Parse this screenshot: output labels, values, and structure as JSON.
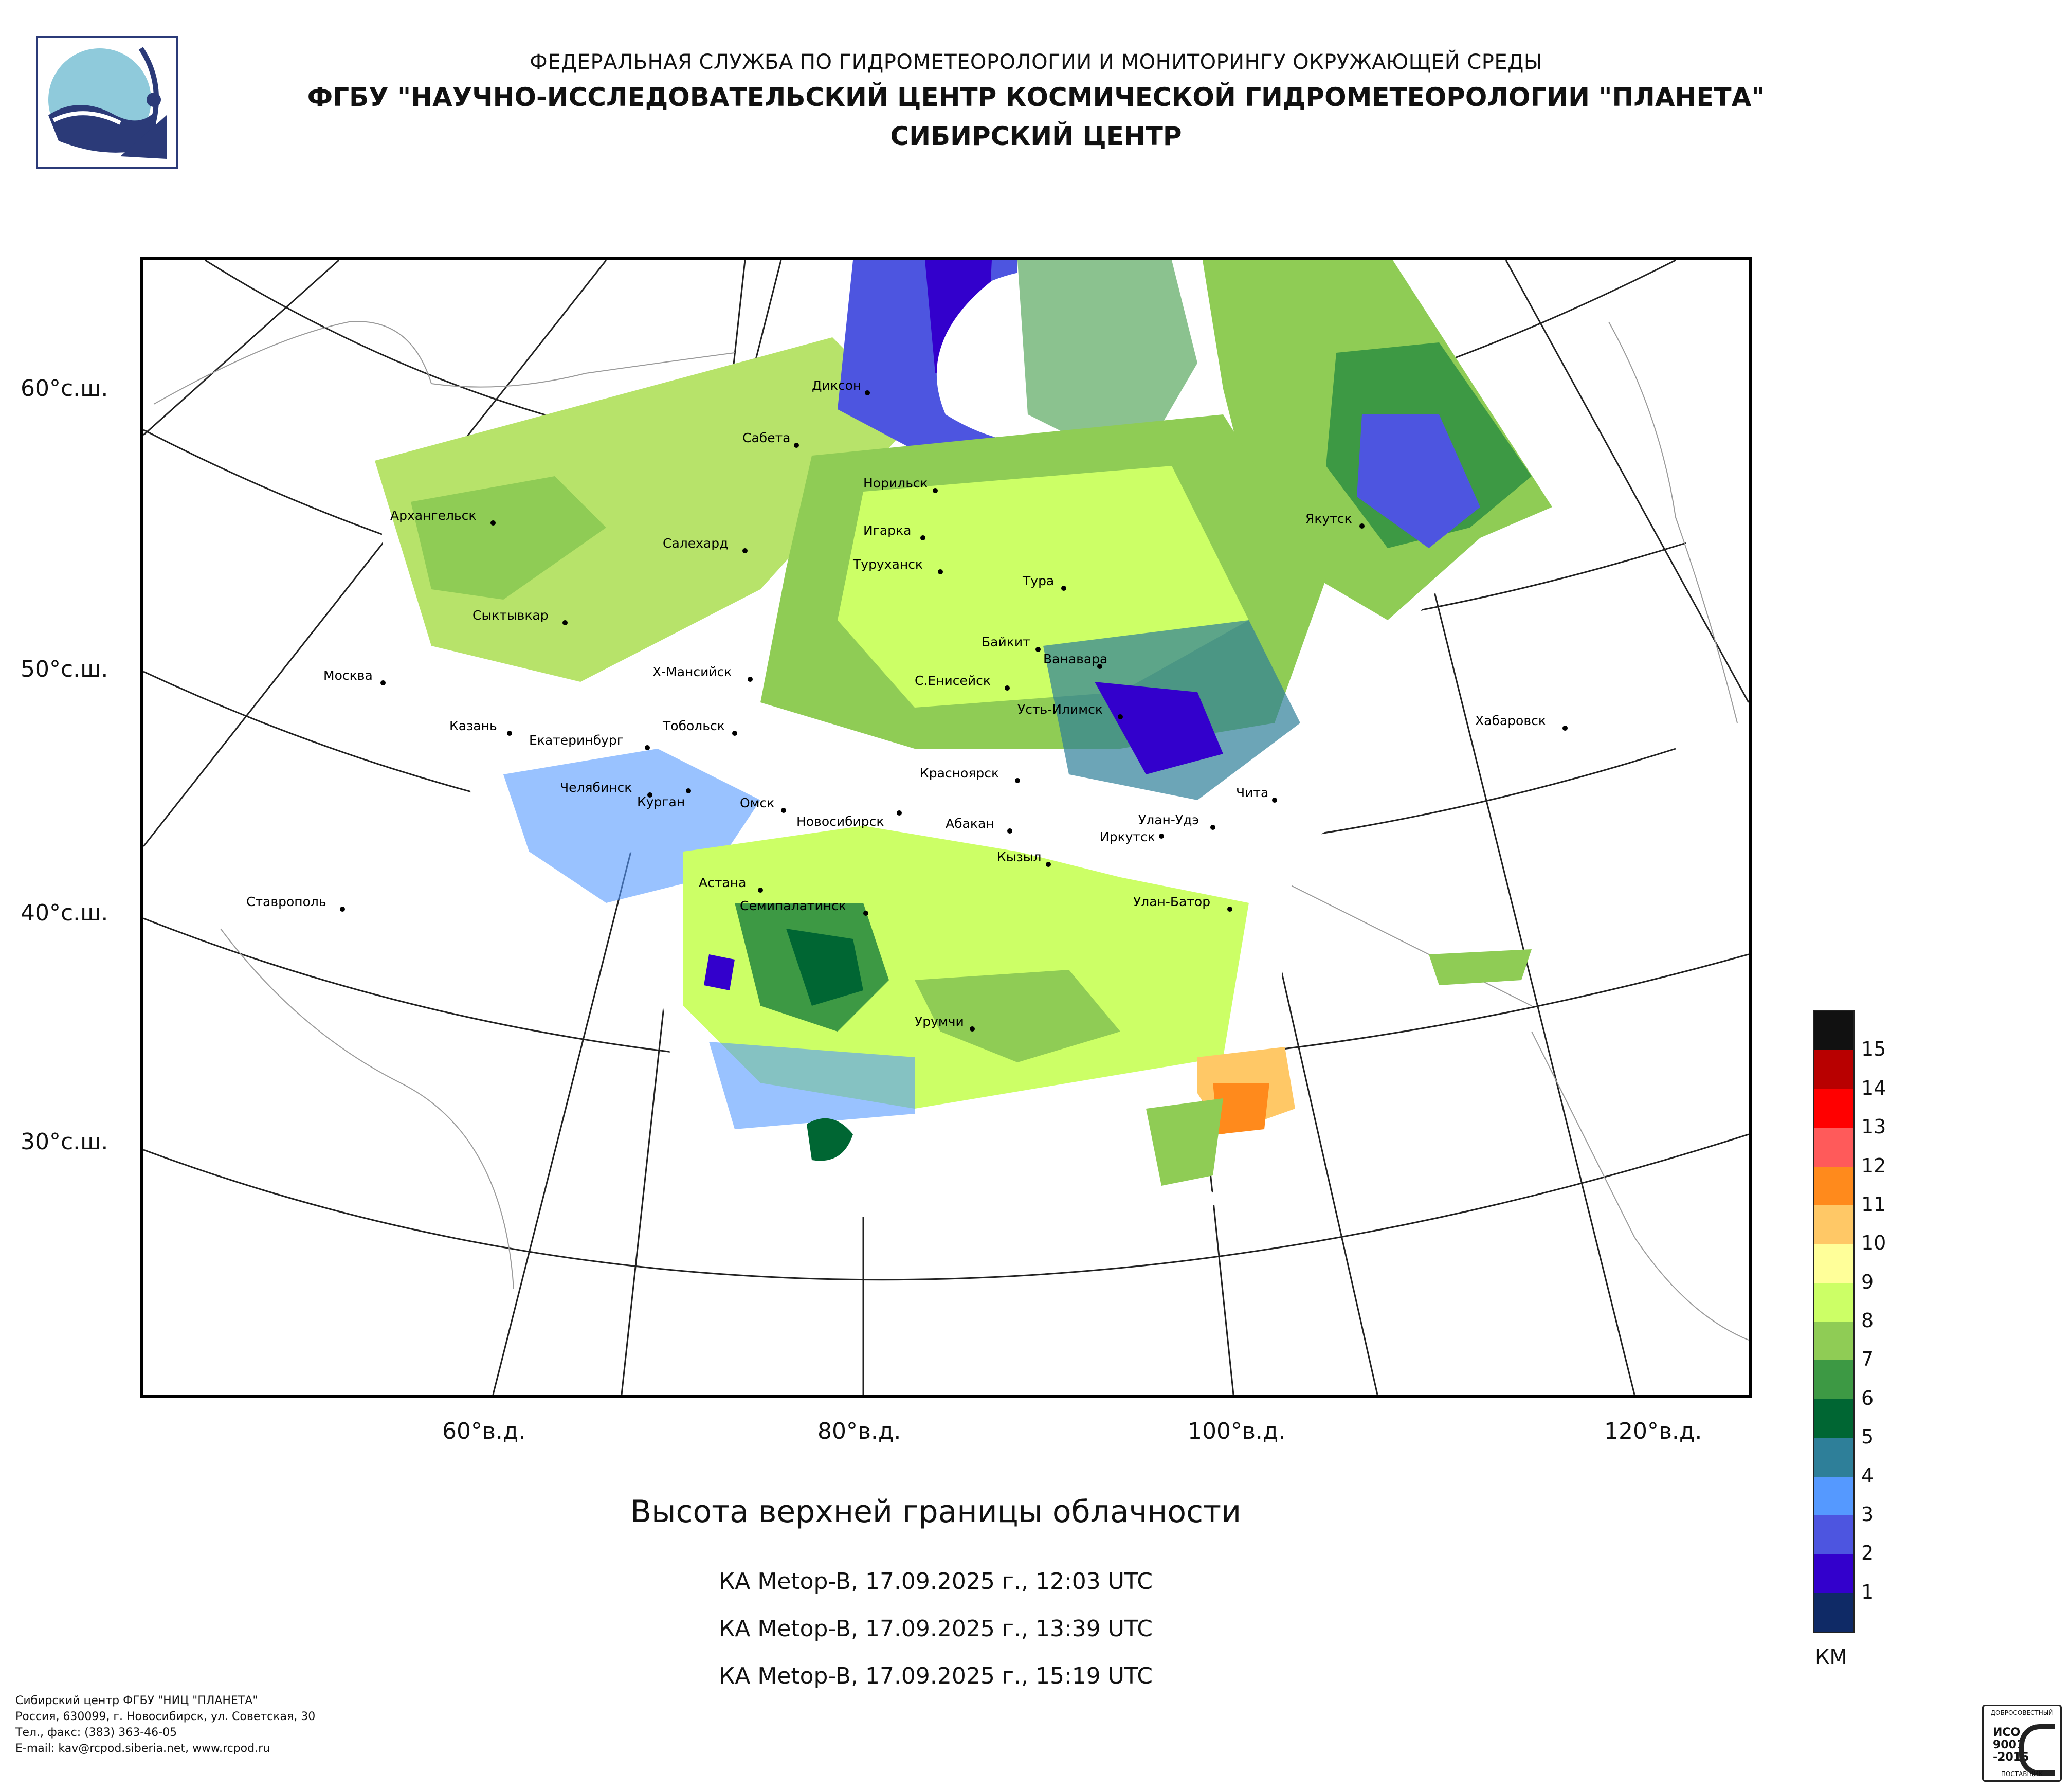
{
  "header": {
    "line1": "ФЕДЕРАЛЬНАЯ СЛУЖБА ПО ГИДРОМЕТЕОРОЛОГИИ И МОНИТОРИНГУ ОКРУЖАЮЩЕЙ СРЕДЫ",
    "line2": "ФГБУ \"НАУЧНО-ИССЛЕДОВАТЕЛЬСКИЙ ЦЕНТР КОСМИЧЕСКОЙ ГИДРОМЕТЕОРОЛОГИИ \"ПЛАНЕТА\"",
    "line3": "СИБИРСКИЙ ЦЕНТР"
  },
  "map": {
    "title": "Высота верхней границы облачности",
    "lat_labels": [
      "60°с.ш.",
      "50°с.ш.",
      "40°с.ш.",
      "30°с.ш."
    ],
    "lon_labels": [
      "60°в.д.",
      "80°в.д.",
      "100°в.д.",
      "120°в.д."
    ],
    "cities": [
      "Диксон",
      "Сабета",
      "Норильск",
      "Архангельск",
      "Игарка",
      "Салехард",
      "Туруханск",
      "Тура",
      "Якутск",
      "Сыктывкар",
      "Байкит",
      "Ванавара",
      "Москва",
      "Х-Мансийск",
      "С.Енисейск",
      "Усть-Илимск",
      "Казань",
      "Тобольск",
      "Екатеринбург",
      "Хабаровск",
      "Красноярск",
      "Челябинск",
      "Курган",
      "Чита",
      "Омск",
      "Новосибирск",
      "Абакан",
      "Улан-Удэ",
      "Иркутск",
      "Кызыл",
      "Астана",
      "Ставрополь",
      "Семипалатинск",
      "Улан-Батор",
      "Урумчи"
    ]
  },
  "satellite_passes": [
    "КА Metop-B, 17.09.2025 г., 12:03 UTC",
    "КА Metop-B, 17.09.2025 г., 13:39 UTC",
    "КА Metop-B, 17.09.2025 г., 15:19 UTC"
  ],
  "legend": {
    "unit": "КМ",
    "levels": [
      "15",
      "14",
      "13",
      "12",
      "11",
      "10",
      "9",
      "8",
      "7",
      "6",
      "5",
      "4",
      "3",
      "2",
      "1"
    ],
    "colors": [
      "#111111",
      "#b80000",
      "#ff0000",
      "#ff5a5a",
      "#ff8a1c",
      "#ffc866",
      "#ffff99",
      "#ccff66",
      "#8fcc55",
      "#3d9944",
      "#006633",
      "#2e7f99",
      "#5599ff",
      "#4d55e0",
      "#3300cc",
      "#0f2a66"
    ]
  },
  "footer": {
    "line1": "Сибирский центр ФГБУ \"НИЦ \"ПЛАНЕТА\"",
    "line2": "Россия, 630099, г. Новосибирск, ул. Советская, 30",
    "line3": "Тел., факс: (383) 363-46-05",
    "line4": "E-mail: kav@rcpod.siberia.net, www.rcpod.ru"
  },
  "iso_badge": {
    "top": "ДОБРОСОВЕСТНЫЙ",
    "mid1": "ИСО",
    "mid2": "9001",
    "mid3": "-2015",
    "bottom": "ПОСТАВЩИК"
  }
}
